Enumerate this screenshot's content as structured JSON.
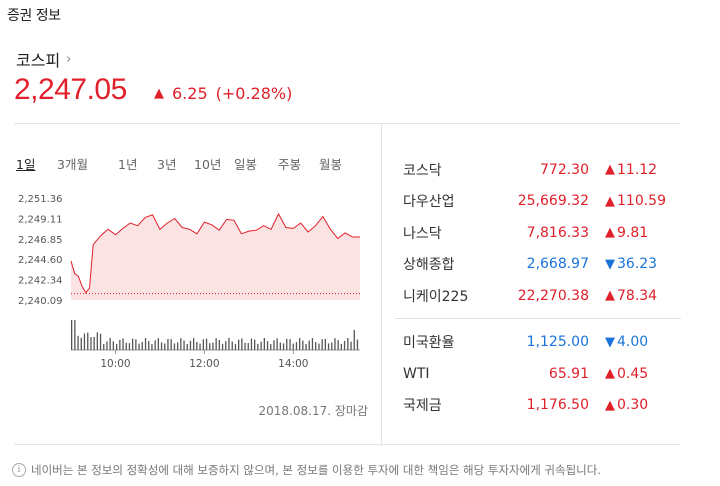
{
  "section_title": "증권 정보",
  "index": {
    "name": "코스피",
    "value": "2,247.05",
    "change": "6.25",
    "change_pct": "(+0.28%)"
  },
  "period_tabs": [
    "1일",
    "3개월",
    "1년",
    "3년",
    "10년",
    "일봉",
    "주봉",
    "월봉"
  ],
  "active_tab": "1일",
  "chart_data": {
    "type": "line",
    "y_ticks": [
      "2,251.36",
      "2,249.11",
      "2,246.85",
      "2,244.60",
      "2,242.34",
      "2,240.09"
    ],
    "x_ticks": [
      "10:00",
      "12:00",
      "14:00"
    ],
    "ylim": [
      2240.09,
      2251.36
    ],
    "xlim": [
      "09:00",
      "15:30"
    ],
    "prev_close": 2240.8,
    "series": [
      {
        "x": [
          "09:00",
          "09:05",
          "09:10",
          "09:15",
          "09:20",
          "09:25",
          "09:30",
          "09:40",
          "09:50",
          "10:00",
          "10:10",
          "10:20",
          "10:30",
          "10:40",
          "10:50",
          "11:00",
          "11:10",
          "11:20",
          "11:30",
          "11:40",
          "11:50",
          "12:00",
          "12:10",
          "12:20",
          "12:30",
          "12:40",
          "12:50",
          "13:00",
          "13:10",
          "13:20",
          "13:30",
          "13:40",
          "13:50",
          "14:00",
          "14:10",
          "14:20",
          "14:30",
          "14:40",
          "14:50",
          "15:00",
          "15:10",
          "15:20",
          "15:30"
        ],
        "values": [
          2244.4,
          2243.0,
          2242.7,
          2241.6,
          2240.9,
          2241.4,
          2246.2,
          2247.2,
          2247.9,
          2247.3,
          2248.0,
          2248.6,
          2248.3,
          2249.2,
          2249.5,
          2247.9,
          2248.6,
          2249.1,
          2248.1,
          2247.9,
          2247.4,
          2248.7,
          2248.4,
          2247.8,
          2249.0,
          2248.9,
          2247.4,
          2247.7,
          2247.8,
          2248.3,
          2247.9,
          2249.6,
          2248.1,
          2248.0,
          2248.6,
          2247.6,
          2248.3,
          2249.3,
          2247.9,
          2246.9,
          2247.5,
          2247.05,
          2247.05
        ],
        "fill": "#fbe3e4",
        "color": "#e0202a"
      }
    ]
  },
  "date_note": "2018.08.17. 장마감",
  "markets_a": [
    {
      "name": "코스닥",
      "price": "772.30",
      "change": "11.12",
      "dir": "up"
    },
    {
      "name": "다우산업",
      "price": "25,669.32",
      "change": "110.59",
      "dir": "up"
    },
    {
      "name": "나스닥",
      "price": "7,816.33",
      "change": "9.81",
      "dir": "up"
    },
    {
      "name": "상해종합",
      "price": "2,668.97",
      "change": "36.23",
      "dir": "down"
    },
    {
      "name": "니케이225",
      "price": "22,270.38",
      "change": "78.34",
      "dir": "up"
    }
  ],
  "markets_b": [
    {
      "name": "미국환율",
      "price": "1,125.00",
      "change": "4.00",
      "dir": "down"
    },
    {
      "name": "WTI",
      "price": "65.91",
      "change": "0.45",
      "dir": "up"
    },
    {
      "name": "국제금",
      "price": "1,176.50",
      "change": "0.30",
      "dir": "up"
    }
  ],
  "disclaimer": "네이버는 본 정보의 정확성에 대해 보증하지 않으며, 본 정보를 이용한 투자에 대한 책임은 해당 투자자에게 귀속됩니다.",
  "colors": {
    "up": "#e0202a",
    "down": "#1a73d9"
  }
}
